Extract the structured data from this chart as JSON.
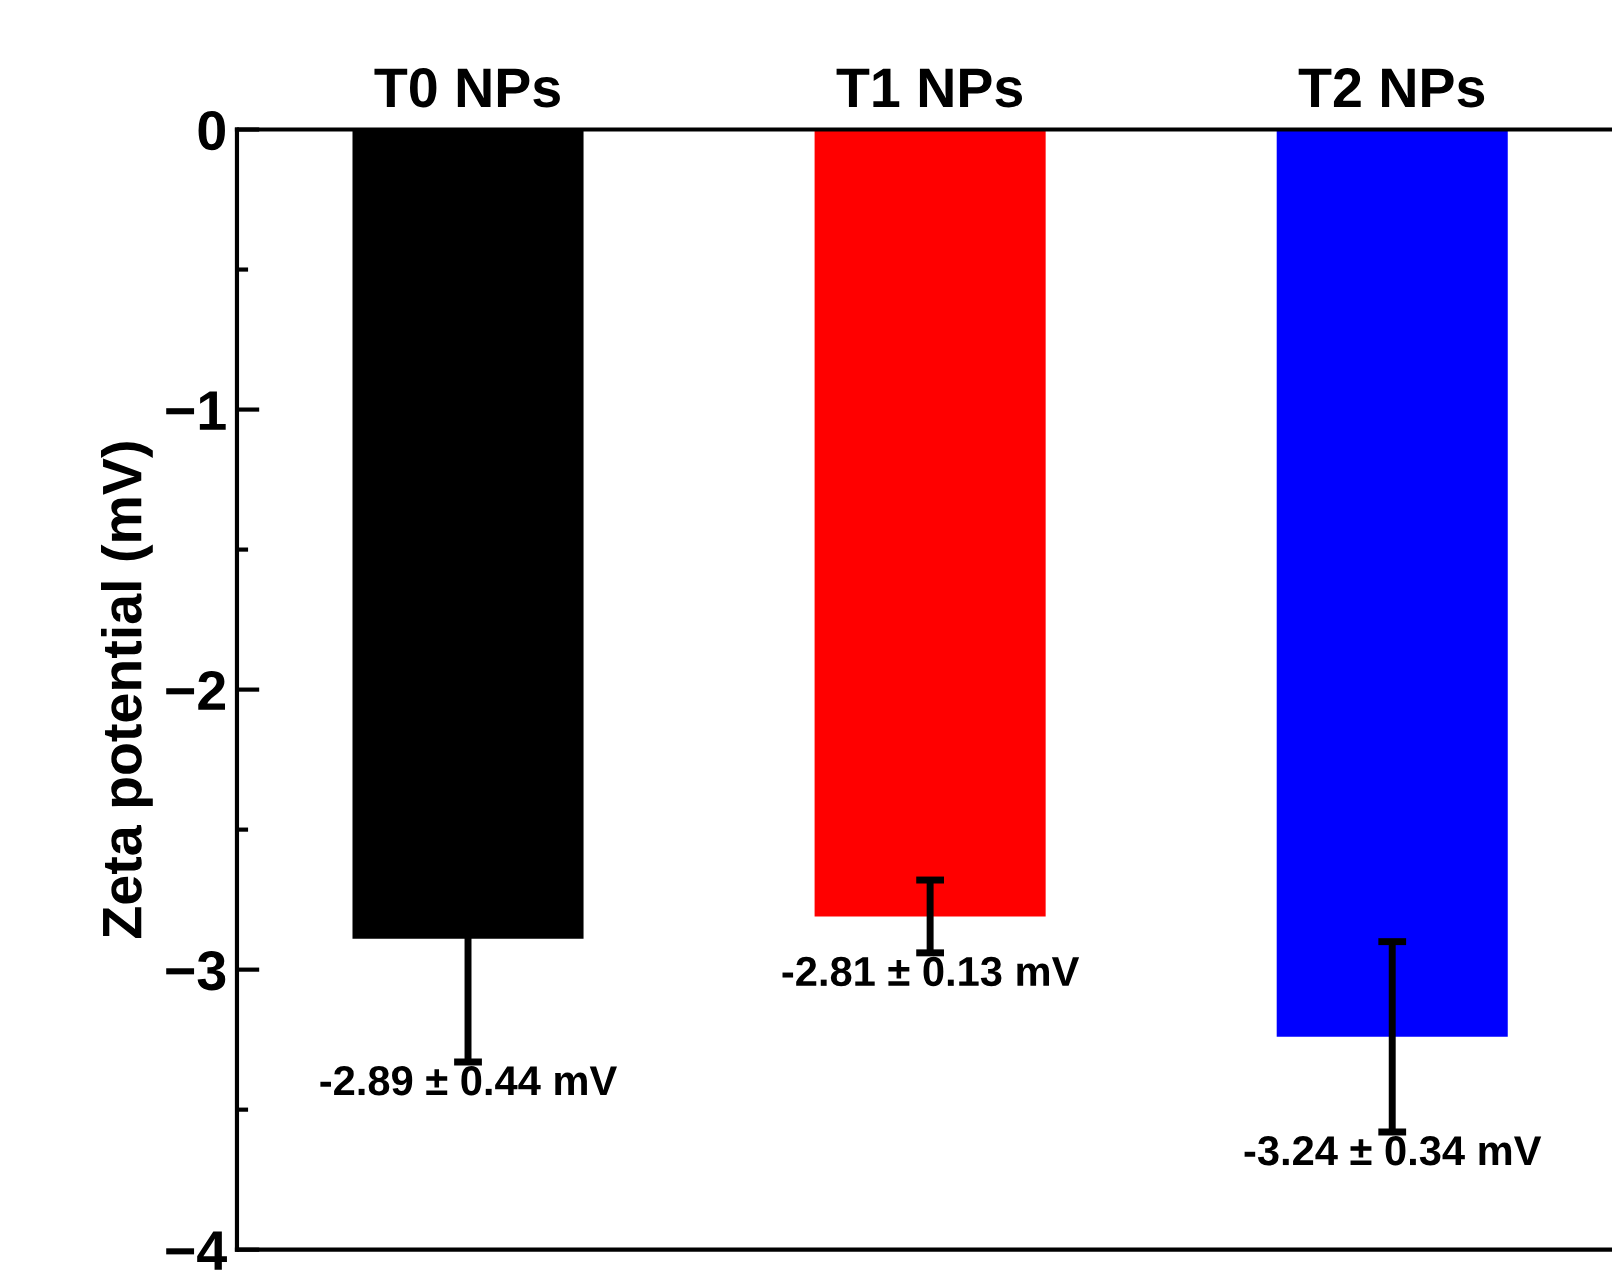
{
  "chart_data": {
    "type": "bar",
    "ylabel": "Zeta potential (mV)",
    "categories": [
      "T0 NPs",
      "T1 NPs",
      "T2 NPs"
    ],
    "values": [
      -2.89,
      -2.81,
      -3.24
    ],
    "colors": [
      "#000000",
      "#ff0000",
      "#0000ff"
    ],
    "errors": [
      0.44,
      0.13,
      0.34
    ],
    "value_labels": [
      "-2.89 ± 0.44 mV",
      "-2.81 ± 0.13 mV",
      "-3.24 ± 0.34 mV"
    ],
    "ylim": [
      -4,
      0
    ],
    "yticks": [
      0,
      {
        "value": -0.5,
        "label": null
      },
      {
        "value": -1,
        "label": "−1"
      },
      {
        "value": -1.5,
        "label": null
      },
      {
        "value": -2,
        "label": "−2"
      },
      {
        "value": -2.5,
        "label": null
      },
      {
        "value": -3,
        "label": "−3"
      },
      {
        "value": -3.5,
        "label": null
      },
      {
        "value": -4,
        "label": "−4"
      }
    ],
    "grid": false,
    "legend": false
  }
}
